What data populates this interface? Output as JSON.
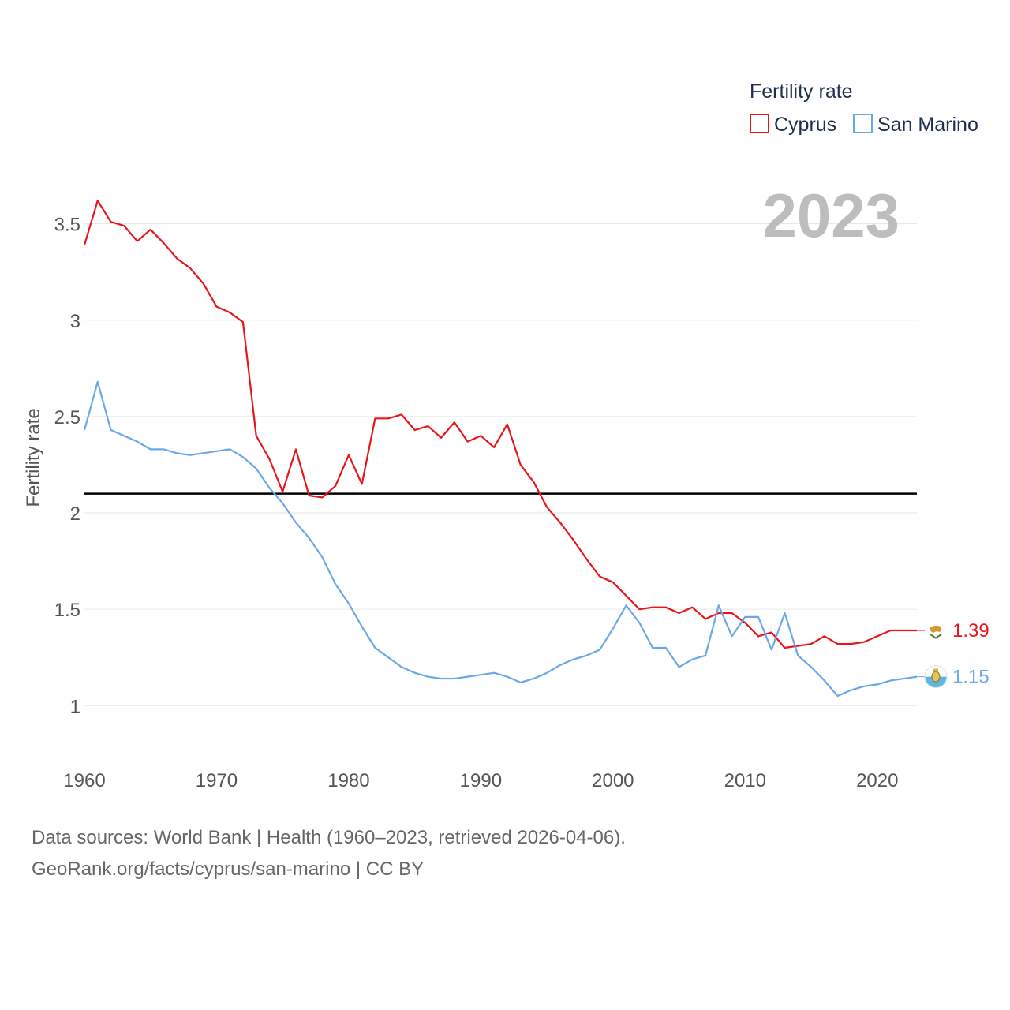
{
  "chart_data": {
    "type": "line",
    "year_label": "2023",
    "ylabel": "Fertility rate",
    "xlim": [
      1960,
      2023
    ],
    "ylim": [
      0.78,
      3.74
    ],
    "yticks": [
      1,
      1.5,
      2,
      2.5,
      3,
      3.5
    ],
    "ytick_labels": [
      "1",
      "1.5",
      "2",
      "2.5",
      "3",
      "3.5"
    ],
    "xticks": [
      1960,
      1970,
      1980,
      1990,
      2000,
      2010,
      2020
    ],
    "xtick_labels": [
      "1960",
      "1970",
      "1980",
      "1990",
      "2000",
      "2010",
      "2020"
    ],
    "reference_line": 2.1,
    "legend": {
      "title": "Fertility rate",
      "position": "top-right"
    },
    "series": [
      {
        "name": "Cyprus",
        "color": "#e8161b",
        "end_label": "1.39",
        "flag_icon": "cyprus-flag-icon",
        "x": [
          1960,
          1961,
          1962,
          1963,
          1964,
          1965,
          1966,
          1967,
          1968,
          1969,
          1970,
          1971,
          1972,
          1973,
          1974,
          1975,
          1976,
          1977,
          1978,
          1979,
          1980,
          1981,
          1982,
          1983,
          1984,
          1985,
          1986,
          1987,
          1988,
          1989,
          1990,
          1991,
          1992,
          1993,
          1994,
          1995,
          1996,
          1997,
          1998,
          1999,
          2000,
          2001,
          2002,
          2003,
          2004,
          2005,
          2006,
          2007,
          2008,
          2009,
          2010,
          2011,
          2012,
          2013,
          2014,
          2015,
          2016,
          2017,
          2018,
          2019,
          2020,
          2021,
          2022,
          2023
        ],
        "values": [
          3.39,
          3.62,
          3.51,
          3.49,
          3.41,
          3.47,
          3.4,
          3.32,
          3.27,
          3.19,
          3.07,
          3.04,
          2.99,
          2.4,
          2.28,
          2.11,
          2.33,
          2.09,
          2.08,
          2.14,
          2.3,
          2.15,
          2.49,
          2.49,
          2.51,
          2.43,
          2.45,
          2.39,
          2.47,
          2.37,
          2.4,
          2.34,
          2.46,
          2.25,
          2.16,
          2.03,
          1.95,
          1.86,
          1.76,
          1.67,
          1.64,
          1.57,
          1.5,
          1.51,
          1.51,
          1.48,
          1.51,
          1.45,
          1.48,
          1.48,
          1.43,
          1.36,
          1.38,
          1.3,
          1.31,
          1.32,
          1.36,
          1.32,
          1.32,
          1.33,
          1.36,
          1.39,
          1.39,
          1.39
        ]
      },
      {
        "name": "San Marino",
        "color": "#6aa9e8",
        "end_label": "1.15",
        "flag_icon": "san-marino-flag-icon",
        "x": [
          1960,
          1961,
          1962,
          1963,
          1964,
          1965,
          1966,
          1967,
          1968,
          1969,
          1970,
          1971,
          1972,
          1973,
          1974,
          1975,
          1976,
          1977,
          1978,
          1979,
          1980,
          1981,
          1982,
          1983,
          1984,
          1985,
          1986,
          1987,
          1988,
          1989,
          1990,
          1991,
          1992,
          1993,
          1994,
          1995,
          1996,
          1997,
          1998,
          1999,
          2000,
          2001,
          2002,
          2003,
          2004,
          2005,
          2006,
          2007,
          2008,
          2009,
          2010,
          2011,
          2012,
          2013,
          2014,
          2015,
          2016,
          2017,
          2018,
          2019,
          2020,
          2021,
          2022,
          2023
        ],
        "values": [
          2.43,
          2.68,
          2.43,
          2.4,
          2.37,
          2.33,
          2.33,
          2.31,
          2.3,
          2.31,
          2.32,
          2.33,
          2.29,
          2.23,
          2.13,
          2.05,
          1.95,
          1.87,
          1.77,
          1.63,
          1.53,
          1.41,
          1.3,
          1.25,
          1.2,
          1.17,
          1.15,
          1.14,
          1.14,
          1.15,
          1.16,
          1.17,
          1.15,
          1.12,
          1.14,
          1.17,
          1.21,
          1.24,
          1.26,
          1.29,
          1.4,
          1.52,
          1.43,
          1.3,
          1.3,
          1.2,
          1.24,
          1.26,
          1.52,
          1.36,
          1.46,
          1.46,
          1.29,
          1.48,
          1.26,
          1.2,
          1.13,
          1.05,
          1.08,
          1.1,
          1.11,
          1.13,
          1.14,
          1.15
        ]
      }
    ]
  },
  "source": {
    "line1": "Data sources: World Bank | Health (1960–2023, retrieved 2026-04-06).",
    "line2": "GeoRank.org/facts/cyprus/san-marino | CC BY"
  }
}
